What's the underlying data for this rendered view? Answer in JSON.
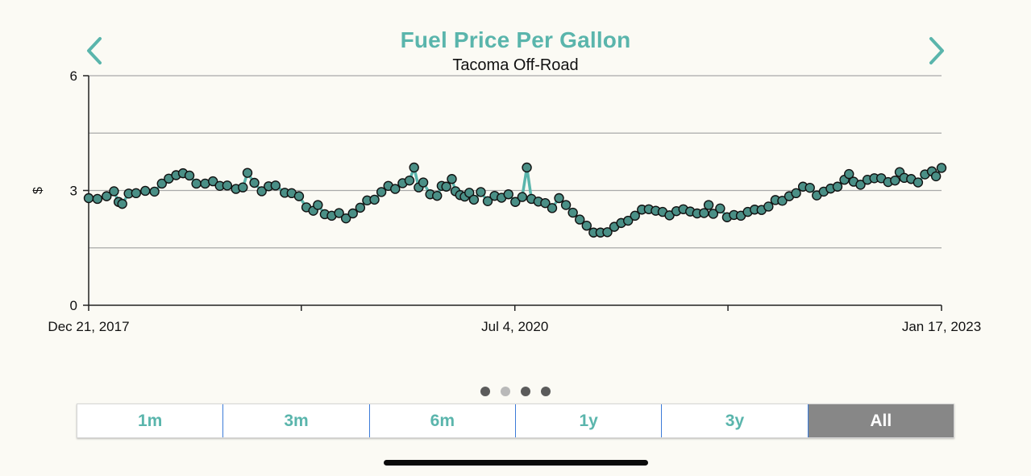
{
  "header": {
    "title": "Fuel Price Per Gallon",
    "subtitle": "Tacoma Off-Road",
    "prev_icon": "chevron-left-icon",
    "next_icon": "chevron-right-icon"
  },
  "pager": {
    "pages": 4,
    "active_index": 1
  },
  "ranges": {
    "options": [
      "1m",
      "3m",
      "6m",
      "1y",
      "3y",
      "All"
    ],
    "selected": "All"
  },
  "colors": {
    "accent": "#5ab5ac",
    "marker_fill": "#4a8f86",
    "line": "#5ab5ac",
    "selected_bg": "#878787",
    "background": "#fbfaf4"
  },
  "chart_data": {
    "type": "line",
    "title": "Fuel Price Per Gallon",
    "subtitle": "Tacoma Off-Road",
    "ylabel": "$",
    "xlabel": "",
    "ylim": [
      0,
      6
    ],
    "yticks": [
      0,
      3,
      6
    ],
    "ygrid": [
      0,
      1.5,
      3,
      4.5,
      6
    ],
    "xlim": [
      "2017-12-21",
      "2023-01-17"
    ],
    "xtick_labels": [
      {
        "date": "2017-12-21",
        "label": "Dec 21, 2017"
      },
      {
        "date": "2020-07-04",
        "label": "Jul 4, 2020"
      },
      {
        "date": "2023-01-17",
        "label": "Jan 17, 2023"
      }
    ],
    "xticks_unlabeled": [
      "2019-03-28",
      "2021-10-10"
    ],
    "series": [
      {
        "values": [
          [
            "2017-12-21",
            2.8
          ],
          [
            "2018-01-09",
            2.78
          ],
          [
            "2018-01-29",
            2.85
          ],
          [
            "2018-02-14",
            2.98
          ],
          [
            "2018-02-24",
            2.7
          ],
          [
            "2018-03-04",
            2.65
          ],
          [
            "2018-03-18",
            2.92
          ],
          [
            "2018-04-03",
            2.93
          ],
          [
            "2018-04-23",
            2.99
          ],
          [
            "2018-05-13",
            2.97
          ],
          [
            "2018-05-29",
            3.18
          ],
          [
            "2018-06-13",
            3.31
          ],
          [
            "2018-06-29",
            3.4
          ],
          [
            "2018-07-14",
            3.45
          ],
          [
            "2018-07-28",
            3.39
          ],
          [
            "2018-08-12",
            3.18
          ],
          [
            "2018-08-31",
            3.18
          ],
          [
            "2018-09-17",
            3.24
          ],
          [
            "2018-10-02",
            3.12
          ],
          [
            "2018-10-18",
            3.13
          ],
          [
            "2018-11-06",
            3.04
          ],
          [
            "2018-11-21",
            3.08
          ],
          [
            "2018-12-01",
            3.46
          ],
          [
            "2018-12-16",
            3.2
          ],
          [
            "2019-01-01",
            2.98
          ],
          [
            "2019-01-16",
            3.11
          ],
          [
            "2019-01-31",
            3.13
          ],
          [
            "2019-02-20",
            2.94
          ],
          [
            "2019-03-07",
            2.93
          ],
          [
            "2019-03-23",
            2.85
          ],
          [
            "2019-04-08",
            2.56
          ],
          [
            "2019-04-23",
            2.47
          ],
          [
            "2019-05-03",
            2.62
          ],
          [
            "2019-05-18",
            2.38
          ],
          [
            "2019-06-02",
            2.34
          ],
          [
            "2019-06-18",
            2.41
          ],
          [
            "2019-07-03",
            2.27
          ],
          [
            "2019-07-18",
            2.4
          ],
          [
            "2019-08-03",
            2.55
          ],
          [
            "2019-08-18",
            2.74
          ],
          [
            "2019-09-03",
            2.76
          ],
          [
            "2019-09-18",
            2.96
          ],
          [
            "2019-10-03",
            3.12
          ],
          [
            "2019-10-18",
            3.04
          ],
          [
            "2019-11-03",
            3.19
          ],
          [
            "2019-11-18",
            3.26
          ],
          [
            "2019-11-28",
            3.6
          ],
          [
            "2019-12-08",
            3.08
          ],
          [
            "2019-12-18",
            3.21
          ],
          [
            "2020-01-02",
            2.9
          ],
          [
            "2020-01-17",
            2.86
          ],
          [
            "2020-01-27",
            3.12
          ],
          [
            "2020-02-06",
            3.1
          ],
          [
            "2020-02-18",
            3.3
          ],
          [
            "2020-02-26",
            2.98
          ],
          [
            "2020-03-07",
            2.88
          ],
          [
            "2020-03-17",
            2.84
          ],
          [
            "2020-03-27",
            2.94
          ],
          [
            "2020-04-06",
            2.76
          ],
          [
            "2020-04-21",
            2.96
          ],
          [
            "2020-05-06",
            2.72
          ],
          [
            "2020-05-21",
            2.86
          ],
          [
            "2020-06-05",
            2.81
          ],
          [
            "2020-06-20",
            2.9
          ],
          [
            "2020-07-05",
            2.7
          ],
          [
            "2020-07-20",
            2.83
          ],
          [
            "2020-07-30",
            3.6
          ],
          [
            "2020-08-09",
            2.78
          ],
          [
            "2020-08-24",
            2.71
          ],
          [
            "2020-09-08",
            2.67
          ],
          [
            "2020-09-23",
            2.54
          ],
          [
            "2020-10-08",
            2.8
          ],
          [
            "2020-10-23",
            2.62
          ],
          [
            "2020-11-07",
            2.42
          ],
          [
            "2020-11-22",
            2.24
          ],
          [
            "2020-12-07",
            2.08
          ],
          [
            "2020-12-22",
            1.9
          ],
          [
            "2021-01-06",
            1.9
          ],
          [
            "2021-01-21",
            1.91
          ],
          [
            "2021-02-05",
            2.05
          ],
          [
            "2021-02-20",
            2.15
          ],
          [
            "2021-03-07",
            2.21
          ],
          [
            "2021-03-22",
            2.34
          ],
          [
            "2021-04-06",
            2.5
          ],
          [
            "2021-04-21",
            2.51
          ],
          [
            "2021-05-06",
            2.47
          ],
          [
            "2021-05-21",
            2.44
          ],
          [
            "2021-06-05",
            2.35
          ],
          [
            "2021-06-20",
            2.46
          ],
          [
            "2021-07-05",
            2.51
          ],
          [
            "2021-07-20",
            2.45
          ],
          [
            "2021-08-04",
            2.4
          ],
          [
            "2021-08-19",
            2.41
          ],
          [
            "2021-08-29",
            2.62
          ],
          [
            "2021-09-08",
            2.39
          ],
          [
            "2021-09-23",
            2.53
          ],
          [
            "2021-10-08",
            2.3
          ],
          [
            "2021-10-23",
            2.36
          ],
          [
            "2021-11-07",
            2.34
          ],
          [
            "2021-11-22",
            2.44
          ],
          [
            "2021-12-07",
            2.5
          ],
          [
            "2021-12-22",
            2.49
          ],
          [
            "2022-01-06",
            2.58
          ],
          [
            "2022-01-21",
            2.75
          ],
          [
            "2022-02-05",
            2.73
          ],
          [
            "2022-02-20",
            2.85
          ],
          [
            "2022-03-07",
            2.93
          ],
          [
            "2022-03-22",
            3.1
          ],
          [
            "2022-04-06",
            3.07
          ],
          [
            "2022-04-21",
            2.87
          ],
          [
            "2022-05-06",
            2.97
          ],
          [
            "2022-05-21",
            3.05
          ],
          [
            "2022-06-05",
            3.1
          ],
          [
            "2022-06-20",
            3.28
          ],
          [
            "2022-06-30",
            3.43
          ],
          [
            "2022-07-10",
            3.23
          ],
          [
            "2022-07-25",
            3.15
          ],
          [
            "2022-08-09",
            3.28
          ],
          [
            "2022-08-24",
            3.32
          ],
          [
            "2022-09-08",
            3.32
          ],
          [
            "2022-09-23",
            3.22
          ],
          [
            "2022-10-08",
            3.26
          ],
          [
            "2022-10-18",
            3.48
          ],
          [
            "2022-10-28",
            3.33
          ],
          [
            "2022-11-12",
            3.3
          ],
          [
            "2022-11-27",
            3.21
          ],
          [
            "2022-12-12",
            3.42
          ],
          [
            "2022-12-27",
            3.5
          ],
          [
            "2023-01-05",
            3.37
          ],
          [
            "2023-01-17",
            3.59
          ]
        ]
      }
    ]
  }
}
